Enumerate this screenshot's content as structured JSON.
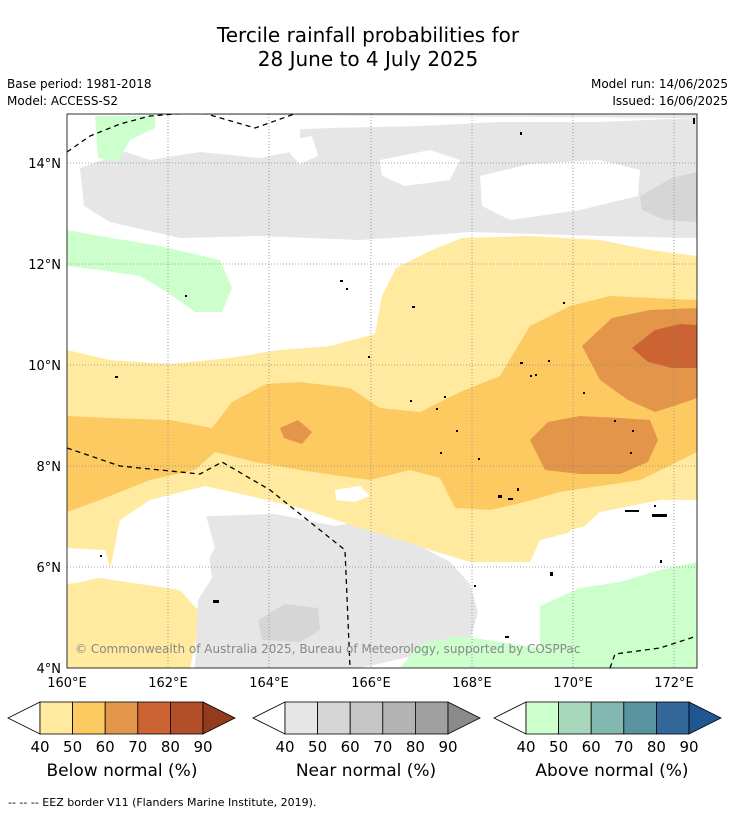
{
  "title_line1": "Tercile rainfall probabilities for",
  "title_line2": "28 June to 4 July 2025",
  "base_period": "Base period: 1981-2018",
  "model": "Model: ACCESS-S2",
  "model_run": "Model run: 14/06/2025",
  "issued": "Issued: 16/06/2025",
  "copyright": "© Commonwealth of Australia 2025, Bureau of Meteorology, supported by COSPPac",
  "lat_labels": [
    "14°N",
    "12°N",
    "10°N",
    "8°N",
    "6°N",
    "4°N"
  ],
  "lon_labels": [
    "160°E",
    "162°E",
    "164°E",
    "166°E",
    "168°E",
    "170°E",
    "172°E"
  ],
  "colorbars": [
    {
      "label": "Below normal (%)",
      "ticks": [
        "40",
        "50",
        "60",
        "70",
        "80",
        "90"
      ],
      "colors": [
        "#ffeaa0",
        "#fdca62",
        "#e3964a",
        "#cc6332",
        "#b34e2a",
        "#943b1f"
      ]
    },
    {
      "label": "Near normal (%)",
      "ticks": [
        "40",
        "50",
        "60",
        "70",
        "80",
        "90"
      ],
      "colors": [
        "#e6e6e6",
        "#d6d6d6",
        "#c6c6c6",
        "#b3b3b3",
        "#a0a0a0",
        "#8a8a8a"
      ]
    },
    {
      "label": "Above normal (%)",
      "ticks": [
        "40",
        "50",
        "60",
        "70",
        "80",
        "90"
      ],
      "colors": [
        "#ccffcc",
        "#a8d8bc",
        "#82b8b0",
        "#5a93a0",
        "#336699",
        "#1e5792"
      ]
    }
  ],
  "footnote": "--  --  -- EEZ border V11 (Flanders Marine Institute, 2019)."
}
